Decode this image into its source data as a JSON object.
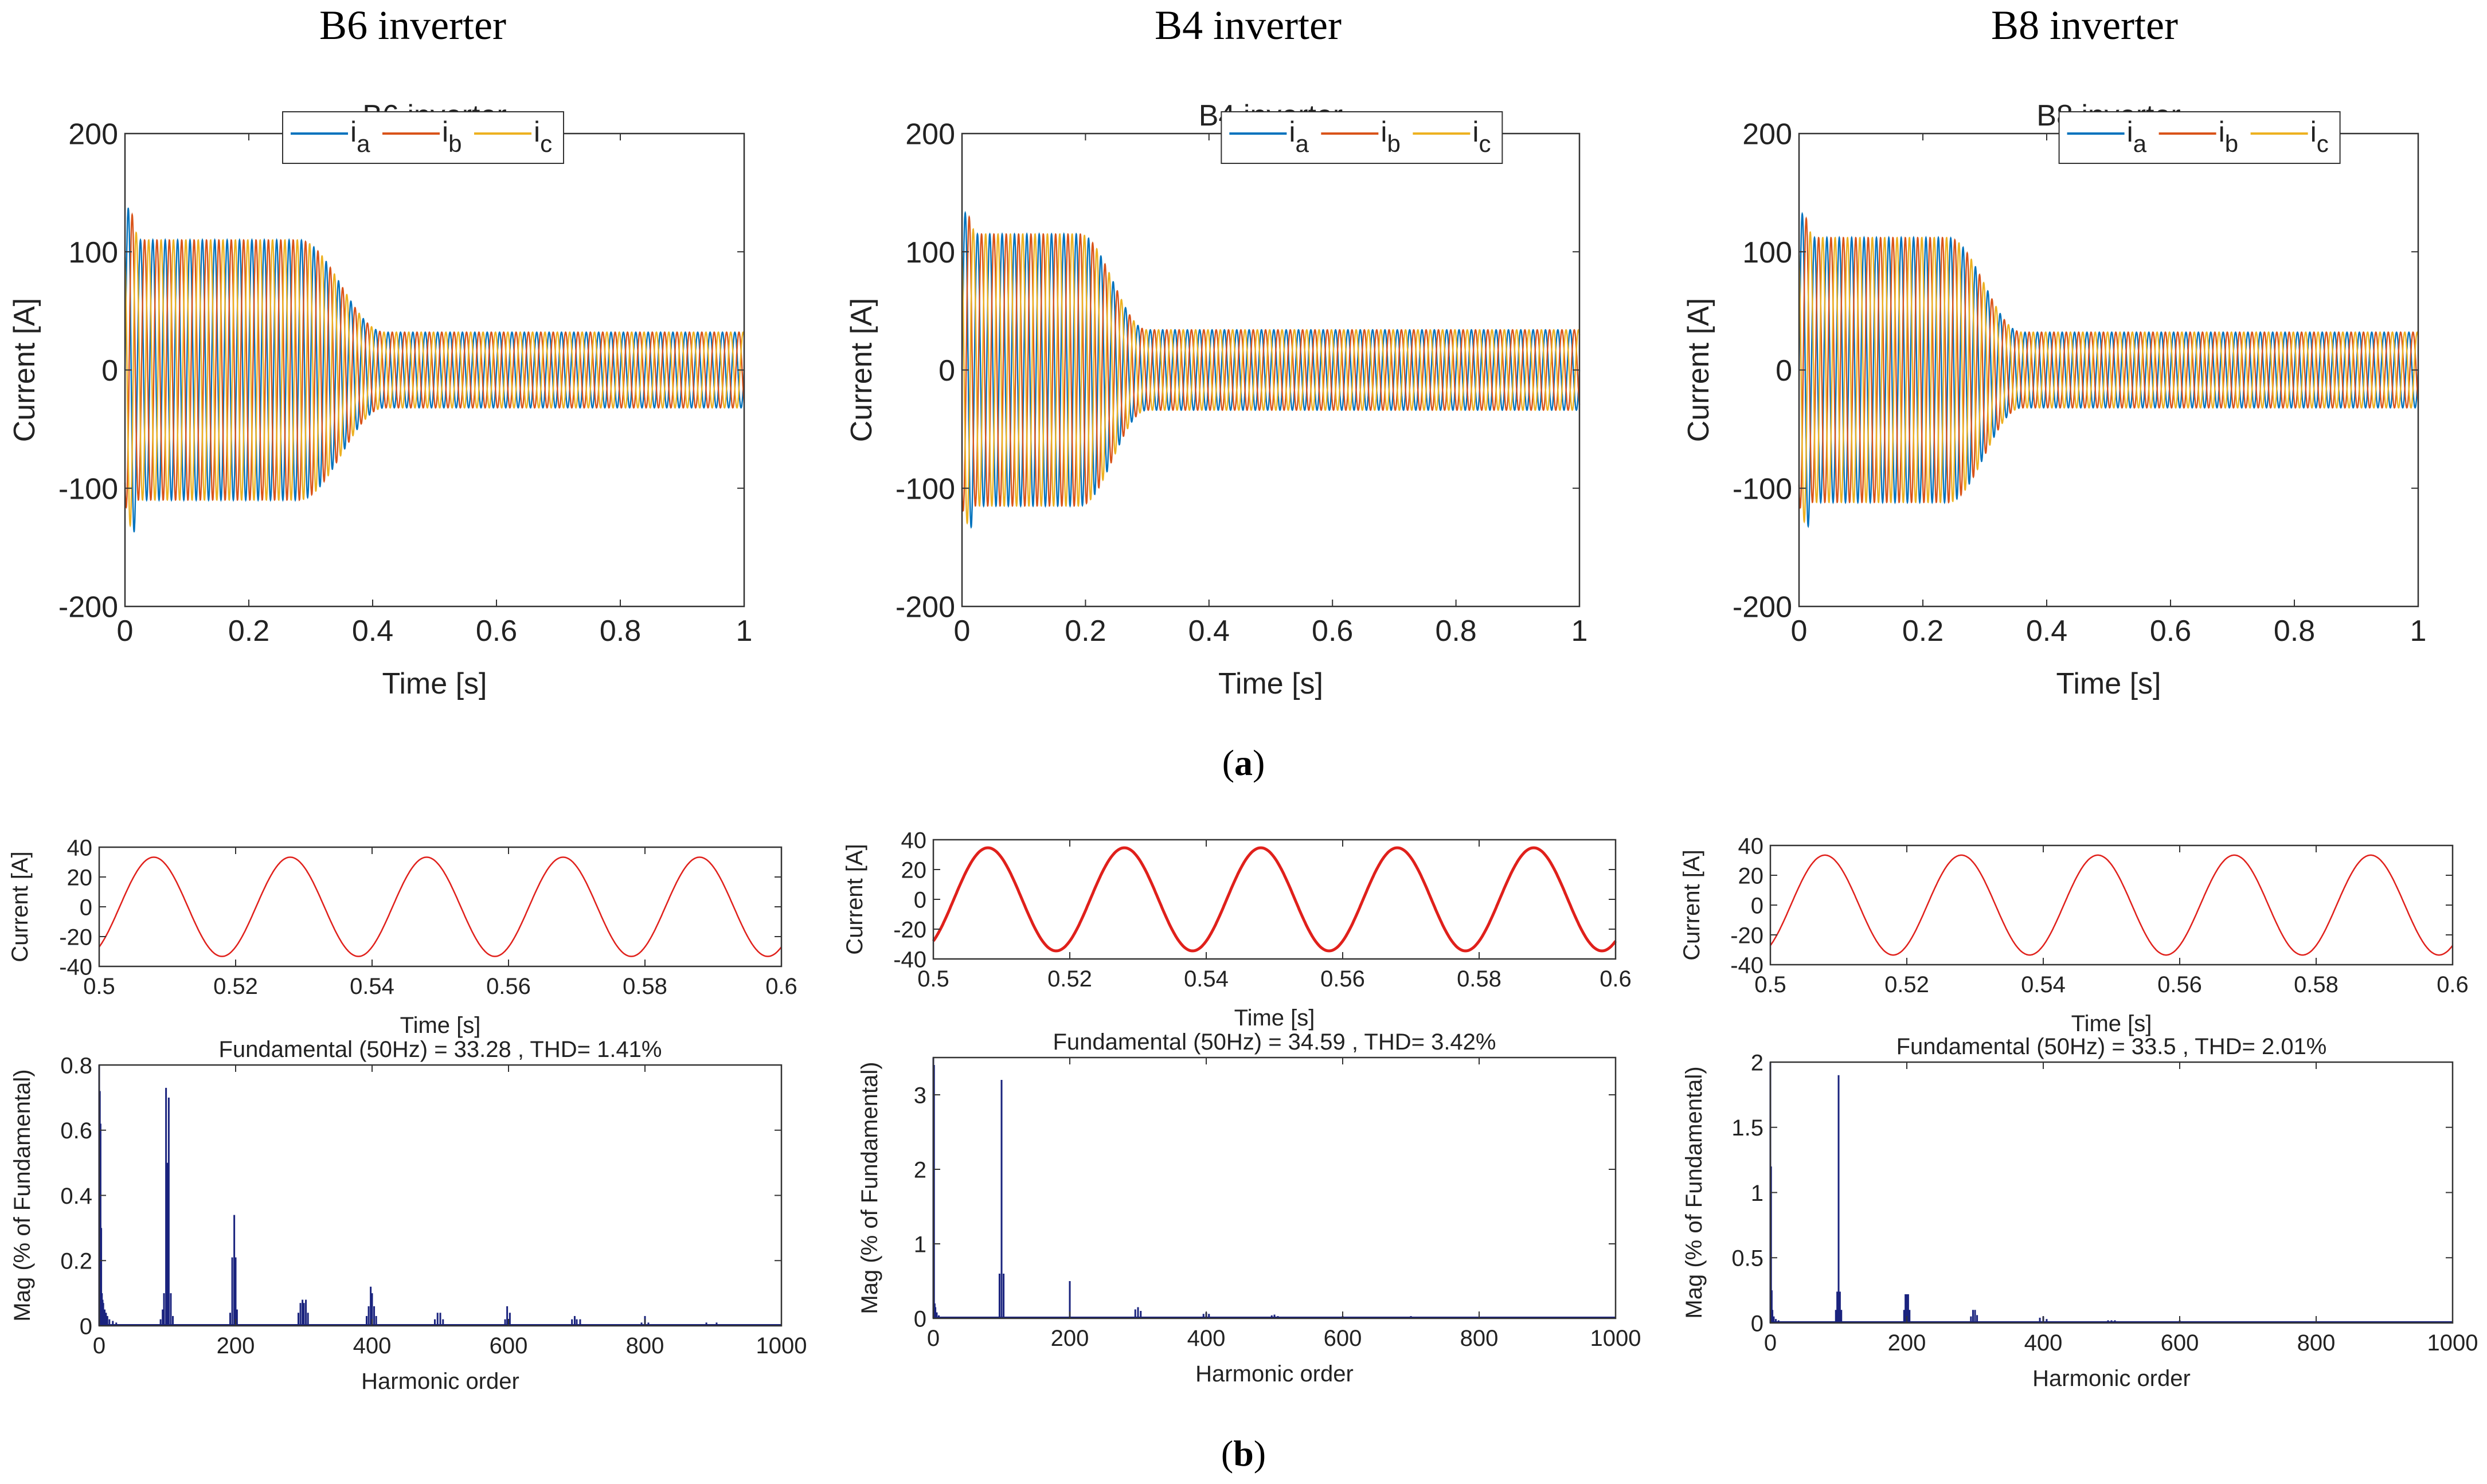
{
  "figure": {
    "caption_a": "a",
    "caption_b": "b"
  },
  "colors": {
    "ia": "#0072BD",
    "ib": "#D95319",
    "ic": "#EDB120",
    "time_red": "#E0201B",
    "spectrum": "#1A237E"
  },
  "chart_data": [
    {
      "id": "b6_current",
      "type": "line",
      "title": "B6 inverter",
      "xlabel": "Time [s]",
      "ylabel": "Current [A]",
      "xlim": [
        0,
        1
      ],
      "ylim": [
        -200,
        200
      ],
      "xticks": [
        0,
        0.2,
        0.4,
        0.6,
        0.8,
        1
      ],
      "yticks": [
        -200,
        -100,
        0,
        100,
        200
      ],
      "xticklabels": [
        "0",
        "0.2",
        "0.4",
        "0.6",
        "0.8",
        "1"
      ],
      "yticklabels": [
        "-200",
        "-100",
        "0",
        "100",
        "200"
      ],
      "legend": [
        {
          "base": "i",
          "sub": "a"
        },
        {
          "base": "i",
          "sub": "b"
        },
        {
          "base": "i",
          "sub": "c"
        }
      ],
      "legend_position": "top-center",
      "frequency_hz": 50,
      "envelope": {
        "initial_peak": 110,
        "steady_peak": 32,
        "transition_start_s": 0.28,
        "transition_end_s": 0.42,
        "startup_spike_a": 147
      }
    },
    {
      "id": "b4_current",
      "type": "line",
      "title": "B4 inverter",
      "xlabel": "Time [s]",
      "ylabel": "Current [A]",
      "xlim": [
        0,
        1
      ],
      "ylim": [
        -200,
        200
      ],
      "xticks": [
        0,
        0.2,
        0.4,
        0.6,
        0.8,
        1
      ],
      "yticks": [
        -200,
        -100,
        0,
        100,
        200
      ],
      "xticklabels": [
        "0",
        "0.2",
        "0.4",
        "0.6",
        "0.8",
        "1"
      ],
      "yticklabels": [
        "-200",
        "-100",
        "0",
        "100",
        "200"
      ],
      "legend": [
        {
          "base": "i",
          "sub": "a"
        },
        {
          "base": "i",
          "sub": "b"
        },
        {
          "base": "i",
          "sub": "c"
        }
      ],
      "legend_position": "top-right",
      "frequency_hz": 50,
      "envelope": {
        "initial_peak": 115,
        "steady_peak": 34,
        "transition_start_s": 0.19,
        "transition_end_s": 0.3,
        "startup_spike_a": 140
      }
    },
    {
      "id": "b8_current",
      "type": "line",
      "title": "B8 inverter",
      "xlabel": "Time [s]",
      "ylabel": "Current [A]",
      "xlim": [
        0,
        1
      ],
      "ylim": [
        -200,
        200
      ],
      "xticks": [
        0,
        0.2,
        0.4,
        0.6,
        0.8,
        1
      ],
      "yticks": [
        -200,
        -100,
        0,
        100,
        200
      ],
      "xticklabels": [
        "0",
        "0.2",
        "0.4",
        "0.6",
        "0.8",
        "1"
      ],
      "yticklabels": [
        "-200",
        "-100",
        "0",
        "100",
        "200"
      ],
      "legend": [
        {
          "base": "i",
          "sub": "a"
        },
        {
          "base": "i",
          "sub": "b"
        },
        {
          "base": "i",
          "sub": "c"
        }
      ],
      "legend_position": "top-right",
      "frequency_hz": 50,
      "envelope": {
        "initial_peak": 112,
        "steady_peak": 32,
        "transition_start_s": 0.24,
        "transition_end_s": 0.36,
        "startup_spike_a": 140
      }
    },
    {
      "id": "b6_phase",
      "type": "line",
      "title": "",
      "xlabel": "Time [s]",
      "ylabel": "Current [A]",
      "xlim": [
        0.5,
        0.6
      ],
      "ylim": [
        -40,
        40
      ],
      "xticks": [
        0.5,
        0.52,
        0.54,
        0.56,
        0.58,
        0.6
      ],
      "yticks": [
        -40,
        -20,
        0,
        20,
        40
      ],
      "xticklabels": [
        "0.5",
        "0.52",
        "0.54",
        "0.56",
        "0.58",
        "0.6"
      ],
      "yticklabels": [
        "-40",
        "-20",
        "0",
        "20",
        "40"
      ],
      "amplitude": 33.28,
      "frequency_hz": 50
    },
    {
      "id": "b4_phase",
      "type": "line",
      "title": "",
      "xlabel": "Time [s]",
      "ylabel": "Current [A]",
      "xlim": [
        0.5,
        0.6
      ],
      "ylim": [
        -40,
        40
      ],
      "xticks": [
        0.5,
        0.52,
        0.54,
        0.56,
        0.58,
        0.6
      ],
      "yticks": [
        -40,
        -20,
        0,
        20,
        40
      ],
      "xticklabels": [
        "0.5",
        "0.52",
        "0.54",
        "0.56",
        "0.58",
        "0.6"
      ],
      "yticklabels": [
        "-40",
        "-20",
        "0",
        "20",
        "40"
      ],
      "amplitude": 34.59,
      "frequency_hz": 50
    },
    {
      "id": "b8_phase",
      "type": "line",
      "title": "",
      "xlabel": "Time [s]",
      "ylabel": "Current [A]",
      "xlim": [
        0.5,
        0.6
      ],
      "ylim": [
        -40,
        40
      ],
      "xticks": [
        0.5,
        0.52,
        0.54,
        0.56,
        0.58,
        0.6
      ],
      "yticks": [
        -40,
        -20,
        0,
        20,
        40
      ],
      "xticklabels": [
        "0.5",
        "0.52",
        "0.54",
        "0.56",
        "0.58",
        "0.6"
      ],
      "yticklabels": [
        "-40",
        "-20",
        "0",
        "20",
        "40"
      ],
      "amplitude": 33.5,
      "frequency_hz": 50
    },
    {
      "id": "b6_spectrum",
      "type": "bar",
      "title": "Fundamental (50Hz) = 33.28 , THD= 1.41%",
      "xlabel": "Harmonic order",
      "ylabel": "Mag (% of Fundamental)",
      "xlim": [
        0,
        1000
      ],
      "ylim": [
        0,
        0.8
      ],
      "xticks": [
        0,
        200,
        400,
        600,
        800,
        1000
      ],
      "yticks": [
        0,
        0.2,
        0.4,
        0.6,
        0.8
      ],
      "xticklabels": [
        "0",
        "200",
        "400",
        "600",
        "800",
        "1000"
      ],
      "yticklabels": [
        "0",
        "0.2",
        "0.4",
        "0.6",
        "0.8"
      ],
      "harmonics": [
        [
          0,
          0.8
        ],
        [
          1,
          0.72
        ],
        [
          2,
          0.62
        ],
        [
          3,
          0.3
        ],
        [
          4,
          0.1
        ],
        [
          5,
          0.08
        ],
        [
          6,
          0.07
        ],
        [
          8,
          0.05
        ],
        [
          10,
          0.04
        ],
        [
          12,
          0.03
        ],
        [
          15,
          0.02
        ],
        [
          20,
          0.015
        ],
        [
          25,
          0.01
        ],
        [
          90,
          0.02
        ],
        [
          93,
          0.05
        ],
        [
          95,
          0.1
        ],
        [
          98,
          0.73
        ],
        [
          100,
          0.5
        ],
        [
          102,
          0.7
        ],
        [
          105,
          0.1
        ],
        [
          108,
          0.03
        ],
        [
          192,
          0.04
        ],
        [
          195,
          0.21
        ],
        [
          198,
          0.34
        ],
        [
          200,
          0.21
        ],
        [
          202,
          0.05
        ],
        [
          292,
          0.04
        ],
        [
          295,
          0.07
        ],
        [
          298,
          0.08
        ],
        [
          300,
          0.07
        ],
        [
          303,
          0.08
        ],
        [
          306,
          0.04
        ],
        [
          392,
          0.03
        ],
        [
          395,
          0.06
        ],
        [
          398,
          0.12
        ],
        [
          400,
          0.1
        ],
        [
          403,
          0.06
        ],
        [
          406,
          0.03
        ],
        [
          492,
          0.02
        ],
        [
          496,
          0.04
        ],
        [
          500,
          0.04
        ],
        [
          504,
          0.02
        ],
        [
          595,
          0.02
        ],
        [
          598,
          0.06
        ],
        [
          602,
          0.04
        ],
        [
          693,
          0.02
        ],
        [
          697,
          0.03
        ],
        [
          700,
          0.02
        ],
        [
          705,
          0.02
        ],
        [
          795,
          0.01
        ],
        [
          800,
          0.03
        ],
        [
          805,
          0.01
        ],
        [
          890,
          0.01
        ],
        [
          905,
          0.01
        ],
        [
          950,
          0.005
        ]
      ]
    },
    {
      "id": "b4_spectrum",
      "type": "bar",
      "title": "Fundamental (50Hz) = 34.59 , THD= 3.42%",
      "xlabel": "Harmonic order",
      "ylabel": "Mag (% of Fundamental)",
      "xlim": [
        0,
        1000
      ],
      "ylim": [
        0,
        3.5
      ],
      "xticks": [
        0,
        200,
        400,
        600,
        800,
        1000
      ],
      "yticks": [
        0,
        1,
        2,
        3
      ],
      "xticklabels": [
        "0",
        "200",
        "400",
        "600",
        "800",
        "1000"
      ],
      "yticklabels": [
        "0",
        "1",
        "2",
        "3"
      ],
      "harmonics": [
        [
          0,
          3.5
        ],
        [
          1,
          3.4
        ],
        [
          2,
          0.2
        ],
        [
          3,
          0.15
        ],
        [
          5,
          0.08
        ],
        [
          8,
          0.04
        ],
        [
          12,
          0.02
        ],
        [
          97,
          0.6
        ],
        [
          100,
          3.2
        ],
        [
          103,
          0.6
        ],
        [
          200,
          0.5
        ],
        [
          296,
          0.12
        ],
        [
          300,
          0.15
        ],
        [
          304,
          0.1
        ],
        [
          396,
          0.06
        ],
        [
          400,
          0.08
        ],
        [
          404,
          0.06
        ],
        [
          496,
          0.04
        ],
        [
          500,
          0.05
        ],
        [
          505,
          0.03
        ],
        [
          600,
          0.03
        ],
        [
          700,
          0.03
        ],
        [
          800,
          0.02
        ],
        [
          900,
          0.02
        ]
      ]
    },
    {
      "id": "b8_spectrum",
      "type": "bar",
      "title": "Fundamental (50Hz) = 33.5 , THD= 2.01%",
      "xlabel": "Harmonic order",
      "ylabel": "Mag (% of Fundamental)",
      "xlim": [
        0,
        1000
      ],
      "ylim": [
        0,
        2
      ],
      "xticks": [
        0,
        200,
        400,
        600,
        800,
        1000
      ],
      "yticks": [
        0,
        0.5,
        1,
        1.5,
        2
      ],
      "xticklabels": [
        "0",
        "200",
        "400",
        "600",
        "800",
        "1000"
      ],
      "yticklabels": [
        "0",
        "0.5",
        "1",
        "1.5",
        "2"
      ],
      "harmonics": [
        [
          0,
          2
        ],
        [
          1,
          1.2
        ],
        [
          2,
          0.25
        ],
        [
          3,
          0.1
        ],
        [
          5,
          0.05
        ],
        [
          8,
          0.03
        ],
        [
          12,
          0.02
        ],
        [
          96,
          0.1
        ],
        [
          98,
          0.24
        ],
        [
          100,
          1.9
        ],
        [
          102,
          0.24
        ],
        [
          104,
          0.1
        ],
        [
          196,
          0.1
        ],
        [
          198,
          0.22
        ],
        [
          200,
          0.22
        ],
        [
          202,
          0.22
        ],
        [
          204,
          0.1
        ],
        [
          294,
          0.05
        ],
        [
          297,
          0.1
        ],
        [
          300,
          0.1
        ],
        [
          303,
          0.06
        ],
        [
          395,
          0.04
        ],
        [
          400,
          0.05
        ],
        [
          405,
          0.03
        ],
        [
          495,
          0.02
        ],
        [
          500,
          0.02
        ],
        [
          505,
          0.02
        ],
        [
          600,
          0.02
        ],
        [
          700,
          0.01
        ],
        [
          800,
          0.01
        ],
        [
          900,
          0.01
        ]
      ]
    }
  ]
}
